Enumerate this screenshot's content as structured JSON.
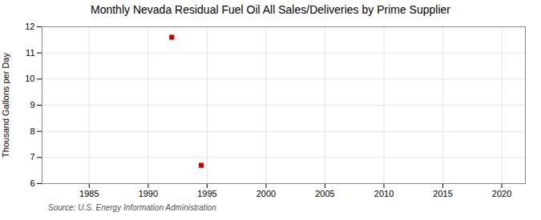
{
  "chart_data": {
    "type": "scatter",
    "title": "Monthly Nevada Residual Fuel Oil All Sales/Deliveries by Prime Supplier",
    "ylabel": "Thousand Gallons per Day",
    "annotation": "Source: U.S. Energy Information Administration",
    "x": [
      1992.0,
      1994.5
    ],
    "values": [
      11.6,
      6.7
    ],
    "color": "#cc0000",
    "marker": "square",
    "xlim": [
      1981,
      2022
    ],
    "ylim": [
      6,
      12
    ],
    "xticks": [
      1985,
      1990,
      1995,
      2000,
      2005,
      2010,
      2015,
      2020
    ],
    "yticks": [
      6,
      7,
      8,
      9,
      10,
      11,
      12
    ],
    "grid": true
  }
}
